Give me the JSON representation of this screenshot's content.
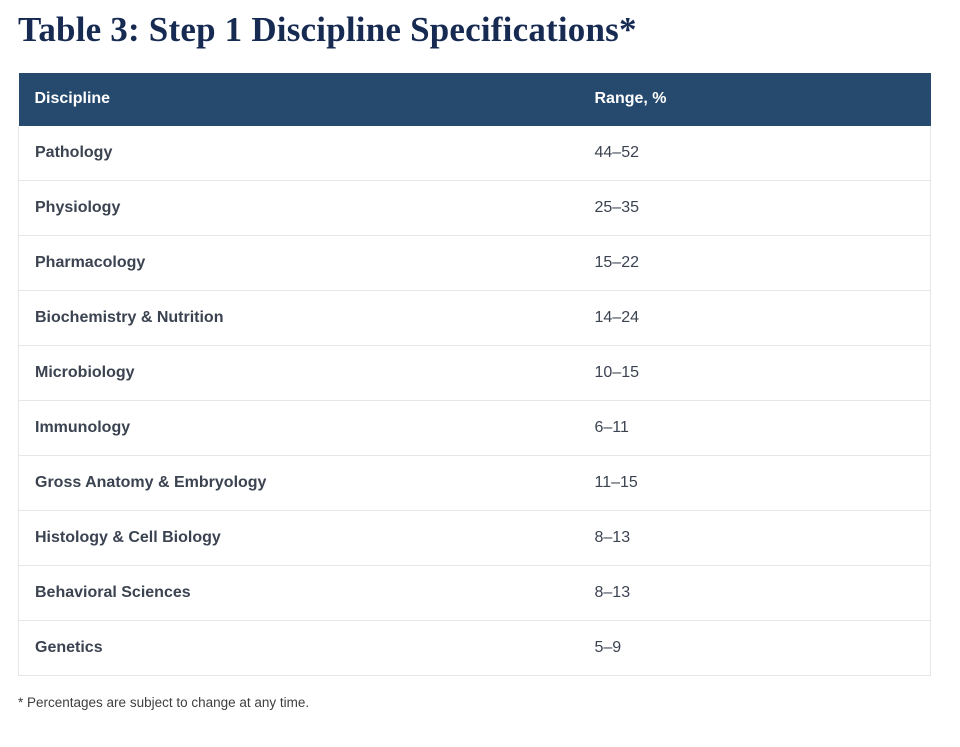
{
  "page": {
    "title": "Table 3: Step 1 Discipline Specifications*",
    "footnote": "* Percentages are subject to change at any time."
  },
  "table": {
    "columns": [
      {
        "label": "Discipline"
      },
      {
        "label": "Range, %"
      }
    ],
    "rows": [
      {
        "discipline": "Pathology",
        "range": "44–52"
      },
      {
        "discipline": "Physiology",
        "range": "25–35"
      },
      {
        "discipline": "Pharmacology",
        "range": "15–22"
      },
      {
        "discipline": "Biochemistry & Nutrition",
        "range": "14–24"
      },
      {
        "discipline": "Microbiology",
        "range": "10–15"
      },
      {
        "discipline": "Immunology",
        "range": "6–11"
      },
      {
        "discipline": "Gross Anatomy & Embryology",
        "range": "11–15"
      },
      {
        "discipline": "Histology & Cell Biology",
        "range": "8–13"
      },
      {
        "discipline": "Behavioral Sciences",
        "range": "8–13"
      },
      {
        "discipline": "Genetics",
        "range": "5–9"
      }
    ]
  },
  "colors": {
    "header_bg": "#254a6e",
    "header_text": "#ffffff",
    "title_text": "#162a52",
    "row_text": "#3b4351",
    "border": "#e5e6e8",
    "footnote_text": "#3f3f3f",
    "page_bg": "#ffffff"
  }
}
